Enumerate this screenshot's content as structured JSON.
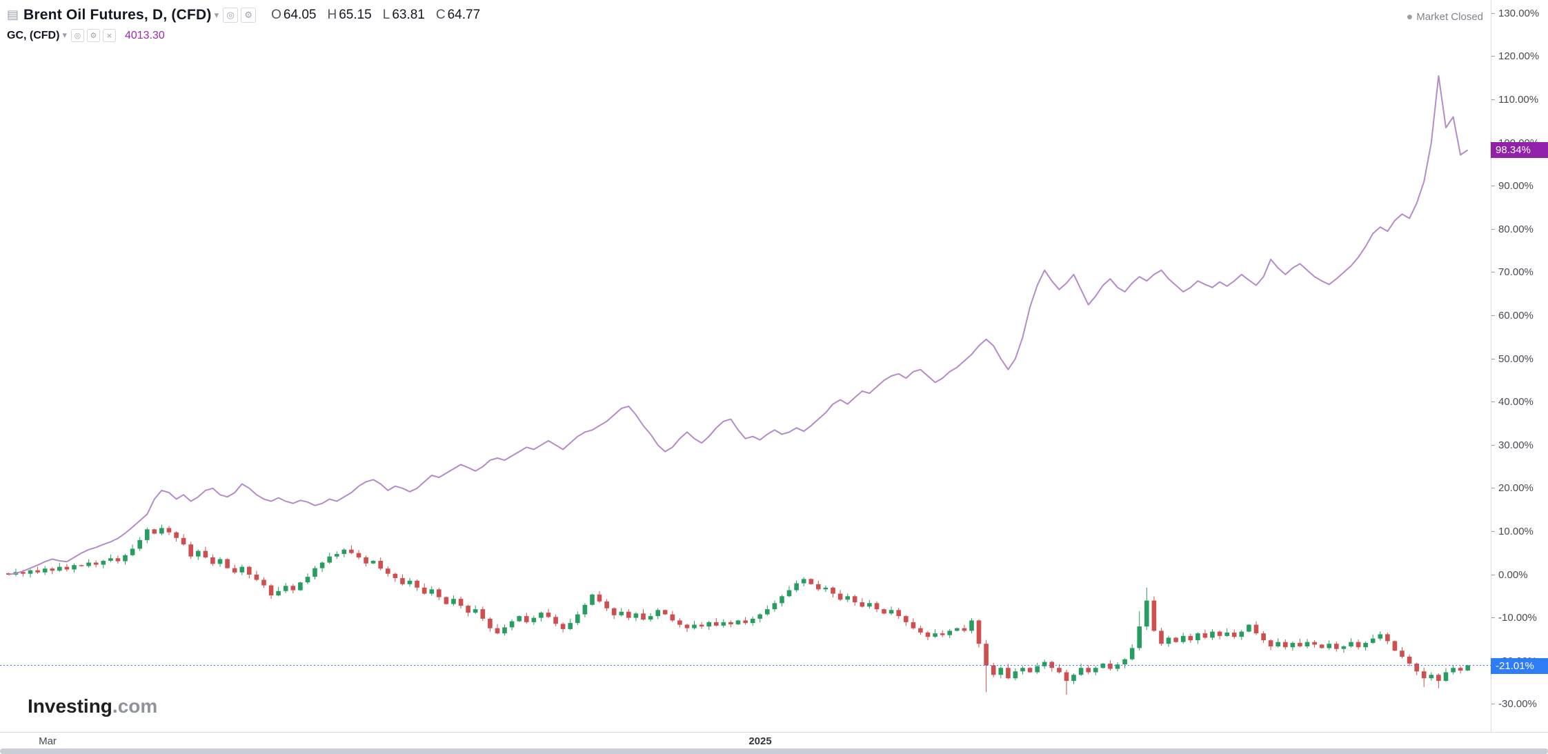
{
  "watermark": {
    "bold": "Investing",
    "suffix": ".com"
  },
  "status": {
    "market": "Market Closed"
  },
  "icons": {
    "panel": "▤",
    "caret": "▾",
    "eye": "◎",
    "gear": "⚙",
    "close": "×",
    "bullet": "●"
  },
  "legend": {
    "main": {
      "title": "Brent Oil Futures, D, (CFD)",
      "ohlc": {
        "o": {
          "k": "O",
          "v": "64.05"
        },
        "h": {
          "k": "H",
          "v": "65.15"
        },
        "l": {
          "k": "L",
          "v": "63.81"
        },
        "c": {
          "k": "C",
          "v": "64.77"
        }
      }
    },
    "compare": {
      "title": "GC, (CFD)",
      "value": "4013.30"
    }
  },
  "price_labels": {
    "gold": "98.34%",
    "brent": "-21.01%"
  },
  "y_axis": {
    "ticks": [
      {
        "v": 130,
        "label": "130.00%"
      },
      {
        "v": 120,
        "label": "120.00%"
      },
      {
        "v": 110,
        "label": "110.00%"
      },
      {
        "v": 100,
        "label": "100.00%"
      },
      {
        "v": 90,
        "label": "90.00%"
      },
      {
        "v": 80,
        "label": "80.00%"
      },
      {
        "v": 70,
        "label": "70.00%"
      },
      {
        "v": 60,
        "label": "60.00%"
      },
      {
        "v": 50,
        "label": "50.00%"
      },
      {
        "v": 40,
        "label": "40.00%"
      },
      {
        "v": 30,
        "label": "30.00%"
      },
      {
        "v": 20,
        "label": "20.00%"
      },
      {
        "v": 10,
        "label": "10.00%"
      },
      {
        "v": 0,
        "label": "0.00%"
      },
      {
        "v": -10,
        "label": "-10.00%"
      },
      {
        "v": -20,
        "label": "-20.00%"
      },
      {
        "v": -30,
        "label": "-30.00%"
      }
    ]
  },
  "x_axis": [
    {
      "label": "Mar",
      "pos": 0.032,
      "year": false
    },
    {
      "label": "2025",
      "pos": 0.51,
      "year": true
    }
  ],
  "colors": {
    "background": "#ffffff",
    "candle_up": "#279d62",
    "candle_down": "#cf4e4e",
    "gold_line": "#b38bc9",
    "price_line": "#3179f5",
    "badge_gold": "#9021a8",
    "badge_brent": "#2e7cf6",
    "axis_text": "#474a52",
    "gc_value_text": "#9c27b0"
  },
  "chart_data": {
    "type": "mixed",
    "y_unit": "percent_change",
    "ylim": [
      -33,
      133
    ],
    "x_axis_labels": [
      "Mar",
      "2025"
    ],
    "legend_position": "top-left",
    "grid": false,
    "series": [
      {
        "name": "Brent Oil Futures, D, (CFD)",
        "type": "candlestick",
        "last_label": "-21.01%",
        "today": {
          "open": 64.05,
          "high": 65.15,
          "low": 63.81,
          "close": 64.77
        },
        "close_pct": [
          0,
          0.6,
          0.2,
          1,
          0.5,
          1.4,
          0.9,
          1.8,
          1.2,
          2.2,
          2,
          2.8,
          2.3,
          3.2,
          3.8,
          3.1,
          4.5,
          6,
          8,
          10.5,
          9.5,
          10.8,
          9.8,
          8.5,
          7,
          4.2,
          5.5,
          4,
          2.5,
          3.6,
          1.5,
          0.5,
          1.8,
          0,
          -1.2,
          -2.5,
          -4.8,
          -3.8,
          -2.6,
          -3.6,
          -1.8,
          -0.5,
          1.5,
          2.8,
          4.2,
          4.8,
          5.8,
          5,
          4,
          2.6,
          3.2,
          1.4,
          0.2,
          -0.8,
          -2.2,
          -1.4,
          -3,
          -4.4,
          -3.4,
          -5.2,
          -6.8,
          -5.6,
          -7.2,
          -8.8,
          -8,
          -10.2,
          -12.4,
          -13.6,
          -12.2,
          -10.8,
          -9.6,
          -11,
          -10,
          -8.8,
          -9.8,
          -11.4,
          -12.6,
          -11.2,
          -9.2,
          -7,
          -4.6,
          -6.2,
          -7.8,
          -9.4,
          -8.6,
          -10,
          -9,
          -10.4,
          -9.6,
          -8.2,
          -9.2,
          -10.6,
          -11.6,
          -12.4,
          -11.6,
          -12,
          -11,
          -11.8,
          -11,
          -11.5,
          -10.6,
          -11.2,
          -10.2,
          -9.2,
          -8,
          -6.6,
          -5,
          -3.6,
          -2,
          -1,
          -2.2,
          -3.4,
          -3,
          -4.4,
          -5.8,
          -5,
          -6.4,
          -7.4,
          -6.6,
          -8,
          -9,
          -8.2,
          -9.6,
          -11,
          -12.4,
          -13.4,
          -14.4,
          -13.6,
          -14,
          -13,
          -12.4,
          -13,
          -10.6,
          -16,
          -21,
          -23.2,
          -21.6,
          -24,
          -22.4,
          -21.6,
          -22.6,
          -21.2,
          -20.2,
          -21.6,
          -22.6,
          -24.6,
          -23.2,
          -21.6,
          -22.6,
          -21.6,
          -20.6,
          -21.8,
          -20.8,
          -19.6,
          -17,
          -12,
          -6,
          -13,
          -16,
          -14.6,
          -15.6,
          -14.2,
          -15.2,
          -13.6,
          -14.6,
          -13.2,
          -14.2,
          -13.4,
          -14.4,
          -13.2,
          -11.6,
          -13.6,
          -15.2,
          -16.6,
          -15.6,
          -16.8,
          -15.8,
          -16.6,
          -15.6,
          -16.2,
          -17,
          -16,
          -17.2,
          -16.6,
          -15.6,
          -16.8,
          -15.8,
          -14.8,
          -13.8,
          -15.4,
          -17.6,
          -19,
          -20.6,
          -22.4,
          -24,
          -23.2,
          -24.6,
          -22.6,
          -21.6,
          -22.2,
          -21.01
        ],
        "wick_overrides": {
          "low": {
            "134": -27.2,
            "145": -27.8,
            "194": -26,
            "196": -26.3
          },
          "high": {
            "155": -8.5,
            "156": -3
          }
        }
      },
      {
        "name": "GC, (CFD)",
        "type": "line",
        "last_label": "98.34%",
        "last_price": 4013.3,
        "values_pct": [
          0,
          0.3,
          0.8,
          1.5,
          2.2,
          3,
          3.6,
          3.2,
          3,
          4,
          5,
          5.8,
          6.3,
          7,
          7.6,
          8.4,
          9.6,
          11,
          12.5,
          14,
          17.5,
          19.5,
          19,
          17.5,
          18.5,
          17,
          18,
          19.5,
          20,
          18.5,
          18,
          19,
          21,
          20,
          18.5,
          17.5,
          17,
          17.8,
          17,
          16.5,
          17.2,
          16.8,
          16,
          16.5,
          17.5,
          17,
          18,
          19,
          20.5,
          21.5,
          22,
          21,
          19.5,
          20.5,
          20,
          19.2,
          20,
          21.5,
          23,
          22.5,
          23.5,
          24.5,
          25.5,
          24.8,
          24,
          25,
          26.5,
          27,
          26.5,
          27.5,
          28.5,
          29.5,
          29,
          30,
          31,
          30,
          29,
          30.5,
          32,
          33,
          33.5,
          34.5,
          35.5,
          37,
          38.5,
          39,
          37,
          34.5,
          32.5,
          30,
          28.5,
          29.5,
          31.5,
          33,
          31.5,
          30.5,
          32,
          34,
          35.5,
          36,
          33.5,
          31.5,
          32,
          31.2,
          32.5,
          33.5,
          32.5,
          33,
          34,
          33.2,
          34.5,
          36,
          37.5,
          39.5,
          40.5,
          39.5,
          41,
          42.5,
          42,
          43.5,
          45,
          46,
          46.5,
          45.5,
          47,
          47.5,
          46,
          44.5,
          45.5,
          47,
          48,
          49.5,
          51,
          53,
          54.5,
          53,
          50,
          47.5,
          50,
          55,
          62,
          67,
          70.5,
          68,
          66,
          67.5,
          69.5,
          66,
          62.5,
          64.5,
          67,
          68.5,
          66.5,
          65.5,
          67.5,
          69,
          68,
          69.5,
          70.5,
          68.5,
          67,
          65.5,
          66.5,
          68,
          67.2,
          66.5,
          67.8,
          66.8,
          68,
          69.5,
          68.2,
          67,
          69,
          73,
          71,
          69.5,
          71,
          72,
          70.5,
          69,
          68,
          67.2,
          68.5,
          70,
          71.5,
          73.5,
          76,
          79,
          80.5,
          79.5,
          82,
          83.5,
          82.5,
          86,
          91,
          100,
          115.5,
          103.5,
          106,
          97.2,
          98.34
        ]
      }
    ]
  }
}
